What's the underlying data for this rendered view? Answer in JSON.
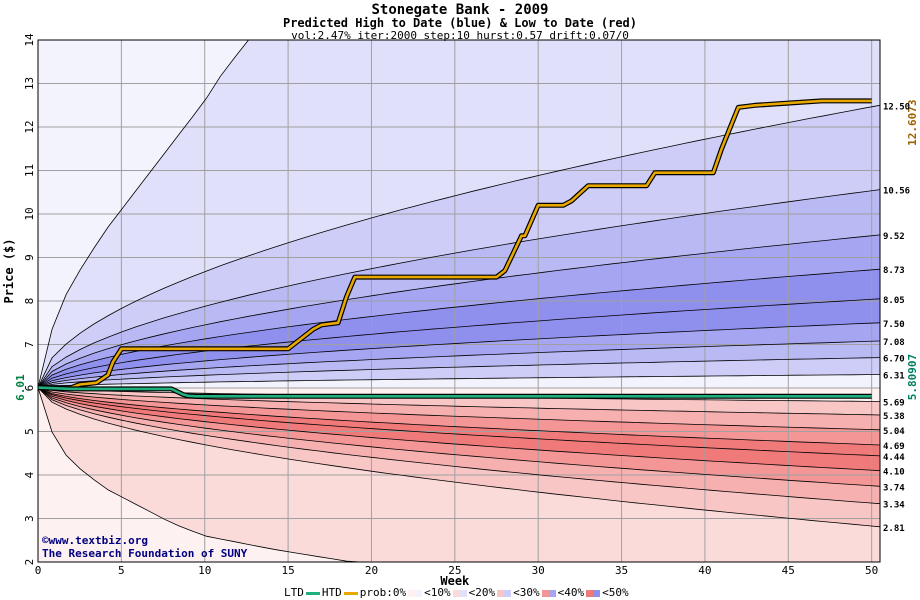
{
  "header": {
    "title": "Stonegate Bank - 2009",
    "subtitle": "Predicted High to Date (blue) &  Low to Date (red)",
    "params": "vol:2.47% iter:2000 step:10 hurst:0.57 drift:0.07/0"
  },
  "credit": {
    "line1": "www.textbiz.org",
    "line2": "The Research Foundation of SUNY"
  },
  "legend": {
    "ltd": "LTD",
    "htd": "HTD",
    "prob0": "prob:0%",
    "p10": "<10%",
    "p20": "<20%",
    "p30": "<30%",
    "p40": "<40%",
    "p50": "<50%"
  },
  "colors": {
    "ltd_line": "#20b080",
    "htd_line": "#e8a800",
    "blue_bands": [
      "#f3f3fd",
      "#e0e0fa",
      "#cdcdf7",
      "#b9b9f4",
      "#a5a5f1",
      "#8f8fee"
    ],
    "red_bands": [
      "#fdf1f1",
      "#fbdada",
      "#f9c6c6",
      "#f7b0b0",
      "#f49696",
      "#f07a7a"
    ]
  },
  "chart_data": {
    "type": "area",
    "title": "Stonegate Bank - 2009",
    "xlabel": "Week",
    "ylabel": "Price ($)",
    "xlim": [
      0,
      50.5
    ],
    "ylim": [
      2,
      14
    ],
    "xticks": [
      0,
      5,
      10,
      15,
      20,
      25,
      30,
      35,
      40,
      45,
      50
    ],
    "yticks": [
      2,
      3,
      4,
      5,
      6,
      7,
      8,
      9,
      10,
      11,
      12,
      13,
      14
    ],
    "grid": true,
    "start_price": 6.01,
    "start_label": "6.01",
    "htd_end": 12.6073,
    "htd_end_label": "12.6073",
    "ltd_end": 5.80907,
    "ltd_end_label": "5.80907",
    "high_quantile_labels": [
      "12.50",
      "10.56",
      "9.52",
      "8.73",
      "8.05",
      "7.50",
      "7.08",
      "6.70",
      "6.31"
    ],
    "low_quantile_labels": [
      "5.69",
      "5.38",
      "5.04",
      "4.69",
      "4.44",
      "4.10",
      "3.74",
      "3.34",
      "2.81"
    ],
    "high_quantile_ends": [
      12.5,
      10.56,
      9.52,
      8.73,
      8.05,
      7.5,
      7.08,
      6.7,
      6.31
    ],
    "low_quantile_ends": [
      5.69,
      5.38,
      5.04,
      4.69,
      4.44,
      4.1,
      3.74,
      3.34,
      2.81
    ],
    "outer_high_curve": {
      "x": [
        0,
        1,
        2,
        3,
        4,
        5,
        6,
        7,
        8,
        9,
        10,
        11,
        12
      ],
      "y": [
        6.01,
        7.6,
        8.4,
        9.0,
        9.6,
        10.1,
        10.6,
        11.1,
        11.6,
        12.1,
        12.6,
        13.2,
        13.7
      ]
    },
    "outer_low_curve": {
      "x": [
        0,
        1,
        2,
        4,
        6,
        8,
        10,
        14,
        18
      ],
      "y": [
        6.01,
        4.8,
        4.3,
        3.7,
        3.3,
        2.9,
        2.6,
        2.3,
        2.05
      ]
    },
    "series": [
      {
        "name": "HTD",
        "x": [
          0,
          2,
          2.5,
          3.5,
          4.2,
          4.5,
          5,
          8,
          15,
          15.5,
          16,
          16.5,
          17,
          18,
          18.5,
          19,
          22,
          27.5,
          28,
          29,
          29.2,
          30,
          31.5,
          32,
          33,
          34,
          36.5,
          37,
          40.5,
          41,
          42,
          43,
          45,
          47,
          50
        ],
        "y": [
          6.01,
          6.01,
          6.08,
          6.12,
          6.3,
          6.6,
          6.9,
          6.9,
          6.9,
          7.05,
          7.2,
          7.35,
          7.45,
          7.5,
          8.1,
          8.55,
          8.55,
          8.55,
          8.7,
          9.5,
          9.5,
          10.2,
          10.2,
          10.3,
          10.65,
          10.65,
          10.65,
          10.95,
          10.95,
          11.5,
          12.45,
          12.5,
          12.55,
          12.6,
          12.6
        ]
      },
      {
        "name": "LTD",
        "x": [
          0,
          2,
          5,
          8,
          8.7,
          9,
          9.5,
          20,
          35,
          45,
          50
        ],
        "y": [
          6.01,
          5.98,
          5.98,
          5.98,
          5.85,
          5.82,
          5.81,
          5.81,
          5.81,
          5.81,
          5.81
        ]
      }
    ]
  }
}
